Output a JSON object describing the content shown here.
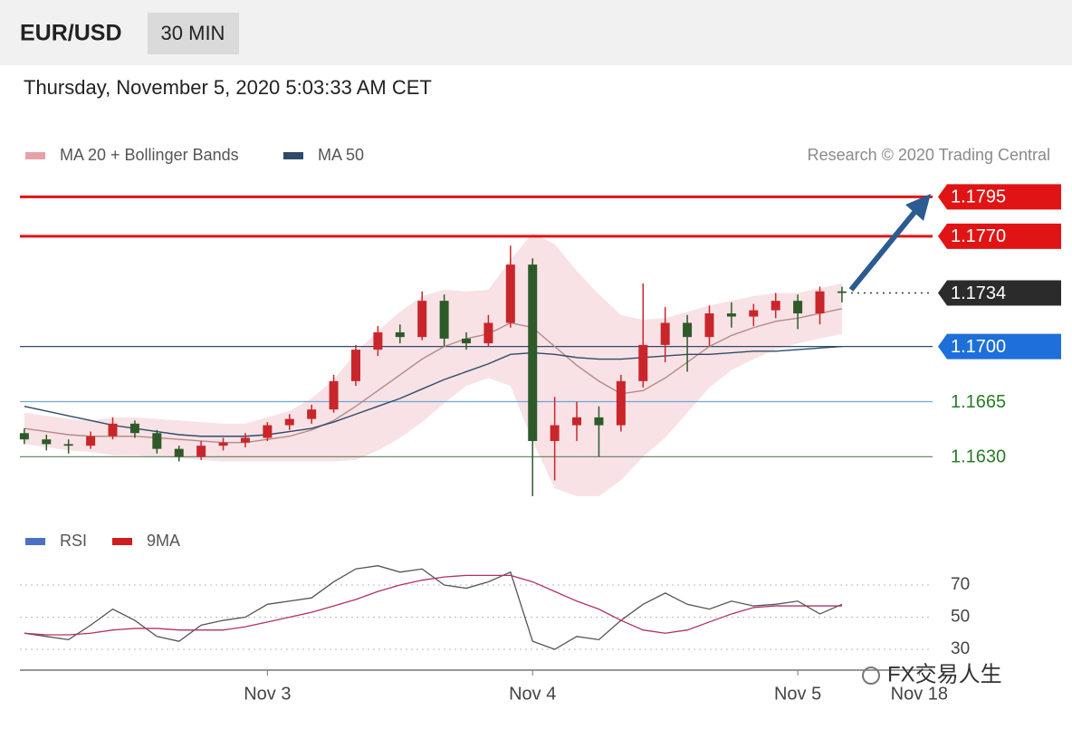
{
  "chart_data": {
    "type": "candlestick",
    "title": "EUR/USD",
    "timeframe": "30 MIN",
    "subtitle": "Thursday, November 5, 2020 5:03:33 AM CET",
    "source": "Research © 2020 Trading Central",
    "watermark": "FX交易人生",
    "up_color": "#c8262b",
    "down_color": "#2e5a2a",
    "xlim": [
      1.6,
      84.2
    ],
    "xticks": [
      {
        "value": 24,
        "label": "Nov 3"
      },
      {
        "value": 48,
        "label": "Nov 4"
      },
      {
        "value": 72,
        "label": "Nov 5"
      },
      {
        "value": 83,
        "label": "Nov 18"
      }
    ],
    "ylim": [
      1.1598,
      1.1805
    ],
    "x": [
      2,
      4,
      6,
      8,
      10,
      12,
      14,
      16,
      18,
      20,
      22,
      24,
      26,
      28,
      30,
      32,
      34,
      36,
      38,
      40,
      42,
      44,
      46,
      48,
      50,
      52,
      54,
      56,
      58,
      60,
      62,
      64,
      66,
      68,
      70,
      72,
      74,
      76
    ],
    "candles": [
      [
        1.1645,
        1.1648,
        1.1638,
        1.1641
      ],
      [
        1.1641,
        1.1644,
        1.1634,
        1.1638
      ],
      [
        1.1638,
        1.1641,
        1.1632,
        1.1637
      ],
      [
        1.1637,
        1.1646,
        1.1635,
        1.1643
      ],
      [
        1.1643,
        1.1655,
        1.1641,
        1.1651
      ],
      [
        1.1651,
        1.1653,
        1.1642,
        1.1645
      ],
      [
        1.1645,
        1.1647,
        1.1632,
        1.1635
      ],
      [
        1.1635,
        1.1637,
        1.1627,
        1.163
      ],
      [
        1.163,
        1.164,
        1.1628,
        1.1637
      ],
      [
        1.1637,
        1.1642,
        1.1634,
        1.1639
      ],
      [
        1.1639,
        1.1645,
        1.1636,
        1.1642
      ],
      [
        1.1642,
        1.1652,
        1.164,
        1.165
      ],
      [
        1.165,
        1.1657,
        1.1647,
        1.1654
      ],
      [
        1.1654,
        1.1663,
        1.1651,
        1.166
      ],
      [
        1.166,
        1.1682,
        1.1658,
        1.1678
      ],
      [
        1.1678,
        1.1701,
        1.1675,
        1.1698
      ],
      [
        1.1698,
        1.1713,
        1.1694,
        1.1709
      ],
      [
        1.1709,
        1.1714,
        1.1702,
        1.1706
      ],
      [
        1.1706,
        1.1735,
        1.1704,
        1.1729
      ],
      [
        1.1729,
        1.1733,
        1.17,
        1.1705
      ],
      [
        1.1705,
        1.1709,
        1.1698,
        1.1702
      ],
      [
        1.1702,
        1.172,
        1.17,
        1.1715
      ],
      [
        1.1715,
        1.1764,
        1.1712,
        1.1752
      ],
      [
        1.1752,
        1.1756,
        1.1605,
        1.164
      ],
      [
        1.164,
        1.1668,
        1.1615,
        1.165
      ],
      [
        1.165,
        1.1665,
        1.164,
        1.1655
      ],
      [
        1.1655,
        1.1662,
        1.163,
        1.165
      ],
      [
        1.165,
        1.1682,
        1.1646,
        1.1678
      ],
      [
        1.1678,
        1.174,
        1.1674,
        1.1701
      ],
      [
        1.1701,
        1.1725,
        1.169,
        1.1715
      ],
      [
        1.1715,
        1.172,
        1.1684,
        1.1706
      ],
      [
        1.1706,
        1.1726,
        1.17,
        1.1721
      ],
      [
        1.1721,
        1.1728,
        1.1712,
        1.1719
      ],
      [
        1.1719,
        1.1727,
        1.1713,
        1.1723
      ],
      [
        1.1723,
        1.1734,
        1.1718,
        1.1729
      ],
      [
        1.1729,
        1.1733,
        1.1711,
        1.1721
      ],
      [
        1.1721,
        1.1738,
        1.1714,
        1.1735
      ],
      [
        1.1735,
        1.1738,
        1.1728,
        1.1734
      ]
    ],
    "series": [
      {
        "name": "MA 20 + Bollinger Bands",
        "color": "#e8a0a8",
        "line_color": "#b58a8a",
        "values": [
          1.1648,
          1.1646,
          1.1644,
          1.1643,
          1.1643,
          1.1643,
          1.1642,
          1.1641,
          1.164,
          1.1639,
          1.1639,
          1.1641,
          1.1643,
          1.1647,
          1.1653,
          1.1662,
          1.1672,
          1.1682,
          1.1692,
          1.17,
          1.1705,
          1.1708,
          1.1715,
          1.1712,
          1.17,
          1.1688,
          1.1678,
          1.167,
          1.1672,
          1.168,
          1.169,
          1.17,
          1.1707,
          1.1712,
          1.1716,
          1.1718,
          1.1721,
          1.1724
        ],
        "upper": [
          1.1658,
          1.1656,
          1.1654,
          1.1653,
          1.1655,
          1.1655,
          1.1654,
          1.1653,
          1.1652,
          1.1651,
          1.1651,
          1.1655,
          1.1659,
          1.1667,
          1.1679,
          1.1696,
          1.171,
          1.1722,
          1.1732,
          1.1736,
          1.1735,
          1.1736,
          1.1755,
          1.1772,
          1.1765,
          1.1748,
          1.1733,
          1.172,
          1.1717,
          1.1718,
          1.1722,
          1.1726,
          1.1729,
          1.1732,
          1.1734,
          1.1734,
          1.1737,
          1.174
        ],
        "lower": [
          1.1638,
          1.1636,
          1.1634,
          1.1633,
          1.1631,
          1.1631,
          1.163,
          1.1629,
          1.1628,
          1.1627,
          1.1627,
          1.1627,
          1.1627,
          1.1627,
          1.1627,
          1.1628,
          1.1634,
          1.1642,
          1.1652,
          1.1664,
          1.1675,
          1.168,
          1.1675,
          1.164,
          1.161,
          1.1605,
          1.1605,
          1.1615,
          1.163,
          1.1642,
          1.1658,
          1.1674,
          1.1685,
          1.1692,
          1.1698,
          1.1702,
          1.1705,
          1.1708
        ]
      },
      {
        "name": "MA 50",
        "color": "#2f4a6b",
        "values": [
          1.1662,
          1.1659,
          1.1656,
          1.1653,
          1.165,
          1.1648,
          1.1646,
          1.1644,
          1.1643,
          1.1643,
          1.1643,
          1.1644,
          1.1646,
          1.1648,
          1.1652,
          1.1657,
          1.1662,
          1.1667,
          1.1673,
          1.1679,
          1.1684,
          1.1689,
          1.1695,
          1.1696,
          1.1695,
          1.1693,
          1.1692,
          1.1692,
          1.1693,
          1.1694,
          1.1695,
          1.1695,
          1.1696,
          1.1697,
          1.1697,
          1.1698,
          1.1699,
          1.17
        ]
      }
    ],
    "levels": [
      {
        "value": 1.1795,
        "label": "1.1795",
        "color": "#e01414",
        "style": "box",
        "line": "thick"
      },
      {
        "value": 1.177,
        "label": "1.1770",
        "color": "#e01414",
        "style": "box",
        "line": "thick"
      },
      {
        "value": 1.1734,
        "label": "1.1734",
        "color": "#2b2b2b",
        "style": "box",
        "line": "dotted"
      },
      {
        "value": 1.17,
        "label": "1.1700",
        "color": "#1e6fd9",
        "style": "box",
        "line": "thin"
      },
      {
        "value": 1.1665,
        "label": "1.1665",
        "color": "#2a7a2a",
        "style": "text",
        "line": "thin"
      },
      {
        "value": 1.163,
        "label": "1.1630",
        "color": "#2a7a2a",
        "style": "text",
        "line": "thin"
      }
    ],
    "rsi": {
      "ylim": [
        20,
        90
      ],
      "yticks": [
        30,
        50,
        70
      ],
      "series": [
        {
          "name": "RSI",
          "color": "#4a72c4",
          "line_color": "#555555",
          "values": [
            40,
            38,
            36,
            45,
            55,
            48,
            38,
            35,
            45,
            48,
            50,
            58,
            60,
            62,
            72,
            80,
            82,
            78,
            80,
            70,
            68,
            72,
            78,
            35,
            30,
            38,
            36,
            48,
            58,
            65,
            58,
            55,
            60,
            57,
            58,
            60,
            52,
            58
          ]
        },
        {
          "name": "9MA",
          "color": "#cc1f1f",
          "line_color": "#b0306a",
          "values": [
            40,
            39,
            39,
            40,
            42,
            43,
            43,
            42,
            42,
            42,
            44,
            47,
            50,
            53,
            57,
            61,
            66,
            70,
            73,
            75,
            76,
            76,
            76,
            72,
            66,
            60,
            55,
            48,
            42,
            40,
            42,
            47,
            52,
            56,
            57,
            57,
            57,
            57
          ]
        }
      ]
    }
  }
}
